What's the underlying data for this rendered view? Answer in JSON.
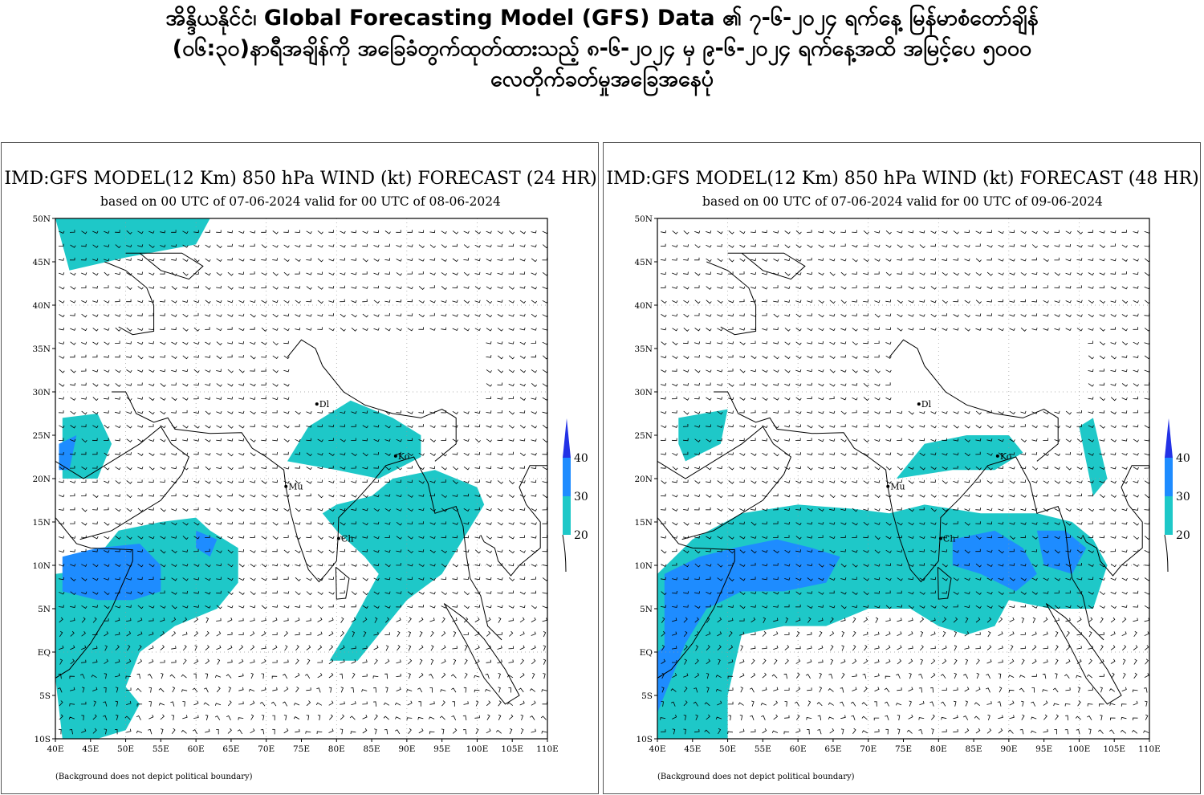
{
  "page": {
    "title_lines": [
      "အိန္ဒိယနိုင်ငံ၊ Global Forecasting Model (GFS) Data ၏ ၇-၆-၂၀၂၄ ရက်နေ့ မြန်မာစံတော်ချိန်",
      "(၀၆:၃၀)နာရီအချိန်ကို အခြေခံတွက်ထုတ်ထားသည့် ၈-၆-၂၀၂၄ မှ ၉-၆-၂၀၂၄ ရက်နေ့အထိ အမြင့်ပေ ၅၀၀၀",
      "လေတိုက်ခတ်မှုအခြေအနေပုံ"
    ]
  },
  "colors": {
    "band_20_30": "#1ec8c8",
    "band_30_40": "#1e8cff",
    "band_40_plus": "#2332e6"
  },
  "map_axes": {
    "x_ticks": [
      "40E",
      "45E",
      "50E",
      "55E",
      "60E",
      "65E",
      "70E",
      "75E",
      "80E",
      "85E",
      "90E",
      "95E",
      "100E",
      "105E",
      "110E"
    ],
    "y_ticks": [
      "50N",
      "45N",
      "40N",
      "35N",
      "30N",
      "25N",
      "20N",
      "15N",
      "10N",
      "5N",
      "EQ",
      "5S",
      "10S"
    ],
    "lon_range": [
      40,
      110
    ],
    "lat_range": [
      -10,
      50
    ]
  },
  "legend": {
    "labels": [
      "40",
      "30",
      "20"
    ],
    "values": [
      40,
      30,
      20
    ]
  },
  "cities": [
    {
      "label": "Dl",
      "lon": 77.2,
      "lat": 28.6
    },
    {
      "label": "Ko",
      "lon": 88.4,
      "lat": 22.6
    },
    {
      "label": "Mu",
      "lon": 72.8,
      "lat": 19.1
    },
    {
      "label": "Ch",
      "lon": 80.3,
      "lat": 13.1
    }
  ],
  "panels": [
    {
      "title": "IMD:GFS MODEL(12 Km) 850 hPa WIND (kt) FORECAST (24 HR)",
      "subtitle": "based on 00 UTC of 07-06-2024 valid for 00 UTC of 08-06-2024",
      "note": "(Background does not depict political boundary)"
    },
    {
      "title": "IMD:GFS MODEL(12 Km) 850 hPa WIND (kt) FORECAST (48 HR)",
      "subtitle": "based on 00 UTC of 07-06-2024 valid for 00 UTC of 09-06-2024",
      "note": "(Background does not depict political boundary)"
    }
  ]
}
